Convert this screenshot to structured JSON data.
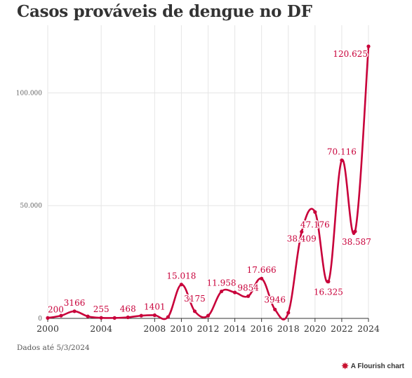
{
  "page": {
    "title": "Casos prováveis de dengue no DF",
    "footnote": "Dados até 5/3/2024",
    "credit": "A Flourish chart",
    "credit_icon": "flourish-logo-icon"
  },
  "colors": {
    "line": "#c8003a",
    "label": "#c8003a",
    "grid": "#e6e6e6",
    "axis": "#333333",
    "text": "#333333"
  },
  "chart_data": {
    "type": "line",
    "title": "Casos prováveis de dengue no DF",
    "xlabel": "",
    "ylabel": "",
    "xlim": [
      2000,
      2024
    ],
    "ylim": [
      0,
      130000
    ],
    "grid": true,
    "x_ticks": [
      "2000",
      "2004",
      "2008",
      "2010",
      "2012",
      "2014",
      "2016",
      "2018",
      "2020",
      "2022",
      "2024"
    ],
    "y_ticks": [
      "0",
      "50.000",
      "100.000"
    ],
    "series": [
      {
        "name": "",
        "x": [
          2000,
          2001,
          2002,
          2003,
          2004,
          2005,
          2006,
          2007,
          2008,
          2009,
          2010,
          2011,
          2012,
          2013,
          2014,
          2015,
          2016,
          2017,
          2018,
          2019,
          2020,
          2021,
          2022,
          2023,
          2024
        ],
        "values": [
          200,
          1200,
          3166,
          900,
          255,
          200,
          468,
          1200,
          1401,
          600,
          15018,
          3175,
          1200,
          11958,
          11500,
          9854,
          17666,
          3946,
          2500,
          38409,
          47176,
          16325,
          70116,
          38587,
          120625
        ]
      }
    ],
    "labels": [
      {
        "x": 2000,
        "y": 200,
        "text": "200"
      },
      {
        "x": 2002,
        "y": 3166,
        "text": "3166"
      },
      {
        "x": 2004,
        "y": 255,
        "text": "255"
      },
      {
        "x": 2006,
        "y": 468,
        "text": "468"
      },
      {
        "x": 2008,
        "y": 1401,
        "text": "1401"
      },
      {
        "x": 2010,
        "y": 15018,
        "text": "15.018"
      },
      {
        "x": 2011,
        "y": 3175,
        "text": "3175"
      },
      {
        "x": 2013,
        "y": 11958,
        "text": "11.958"
      },
      {
        "x": 2015,
        "y": 9854,
        "text": "9854"
      },
      {
        "x": 2016,
        "y": 17666,
        "text": "17.666"
      },
      {
        "x": 2017,
        "y": 3946,
        "text": "3946"
      },
      {
        "x": 2019,
        "y": 38409,
        "text": "38.409"
      },
      {
        "x": 2020,
        "y": 47176,
        "text": "47.176"
      },
      {
        "x": 2021,
        "y": 16325,
        "text": "16.325"
      },
      {
        "x": 2022,
        "y": 70116,
        "text": "70.116"
      },
      {
        "x": 2023,
        "y": 38587,
        "text": "38.587"
      },
      {
        "x": 2024,
        "y": 120625,
        "text": "120.625"
      }
    ]
  }
}
